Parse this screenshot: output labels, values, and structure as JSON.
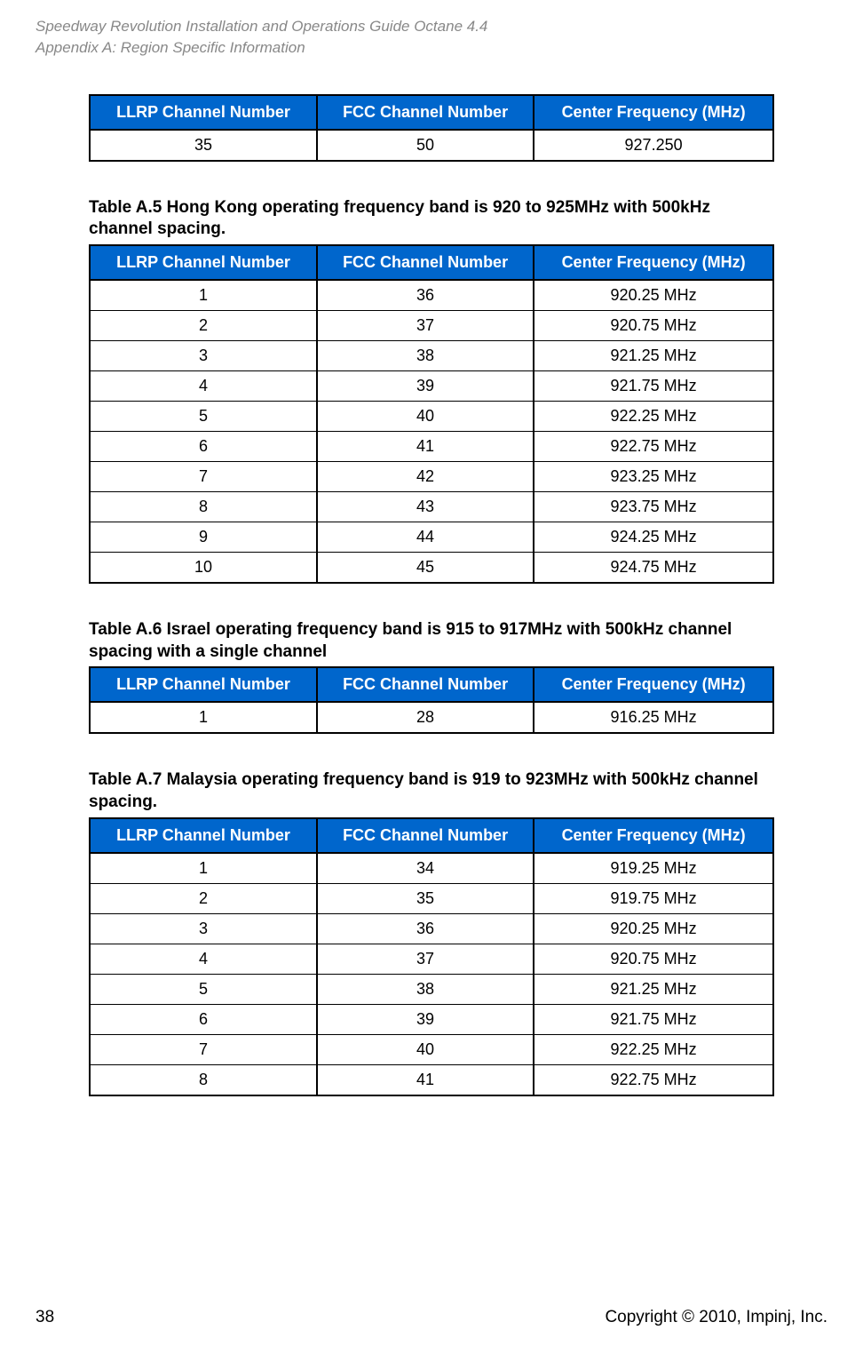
{
  "header": {
    "line1": "Speedway Revolution Installation and Operations Guide Octane 4.4",
    "line2": "Appendix A: Region Specific Information"
  },
  "styling": {
    "header_bg": "#0066cc",
    "header_text_color": "#ffffff",
    "border_color": "#000000",
    "page_header_color": "#888888",
    "body_font": "Arial",
    "th_fontsize": 18,
    "td_fontsize": 18,
    "caption_fontsize": 19
  },
  "columns": {
    "col1": "LLRP Channel Number",
    "col2": "FCC Channel Number",
    "col3": "Center Frequency (MHz)"
  },
  "table_top": {
    "rows": [
      [
        "35",
        "50",
        "927.250"
      ]
    ]
  },
  "table_a5": {
    "caption": "Table A.5 Hong Kong operating frequency band is 920 to 925MHz with 500kHz channel spacing.",
    "rows": [
      [
        "1",
        "36",
        "920.25 MHz"
      ],
      [
        "2",
        "37",
        "920.75 MHz"
      ],
      [
        "3",
        "38",
        "921.25 MHz"
      ],
      [
        "4",
        "39",
        "921.75 MHz"
      ],
      [
        "5",
        "40",
        "922.25 MHz"
      ],
      [
        "6",
        "41",
        "922.75 MHz"
      ],
      [
        "7",
        "42",
        "923.25 MHz"
      ],
      [
        "8",
        "43",
        "923.75 MHz"
      ],
      [
        "9",
        "44",
        "924.25 MHz"
      ],
      [
        "10",
        "45",
        "924.75 MHz"
      ]
    ]
  },
  "table_a6": {
    "caption": "Table A.6 Israel operating frequency band is 915 to 917MHz with 500kHz channel spacing with a single channel",
    "rows": [
      [
        "1",
        "28",
        "916.25 MHz"
      ]
    ]
  },
  "table_a7": {
    "caption": "Table A.7 Malaysia operating frequency band is 919 to 923MHz with 500kHz channel spacing.",
    "rows": [
      [
        "1",
        "34",
        "919.25 MHz"
      ],
      [
        "2",
        "35",
        "919.75 MHz"
      ],
      [
        "3",
        "36",
        "920.25 MHz"
      ],
      [
        "4",
        "37",
        "920.75 MHz"
      ],
      [
        "5",
        "38",
        "921.25 MHz"
      ],
      [
        "6",
        "39",
        "921.75 MHz"
      ],
      [
        "7",
        "40",
        "922.25 MHz"
      ],
      [
        "8",
        "41",
        "922.75 MHz"
      ]
    ]
  },
  "footer": {
    "page": "38",
    "copyright": "Copyright © 2010, Impinj, Inc."
  }
}
